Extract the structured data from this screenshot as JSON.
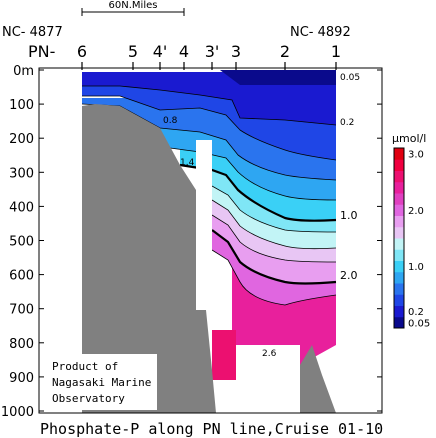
{
  "chart_data": {
    "type": "heatmap",
    "title": "Phosphate-P along PN line,Cruise 01-10",
    "scale_label": "60N.Miles",
    "left_station_id": "NC- 4877",
    "right_station_id": "NC- 4892",
    "line_prefix": "PN-",
    "stations": [
      "6",
      "5",
      "4'",
      "4",
      "3'",
      "3",
      "2",
      "1"
    ],
    "y_axis": {
      "ticks": [
        "0m",
        "100",
        "200",
        "300",
        "400",
        "500",
        "600",
        "700",
        "800",
        "900",
        "1000"
      ],
      "ylim": [
        0,
        1000
      ],
      "unit": "m",
      "inverted": true
    },
    "colorbar": {
      "unit": "μmol/l",
      "tick_labels": [
        "3.0",
        "2.0",
        "1.0",
        "0.2",
        "0.05"
      ],
      "levels": [
        0.05,
        0.2,
        0.4,
        0.6,
        0.8,
        1.0,
        1.2,
        1.4,
        1.6,
        1.8,
        2.0,
        2.2,
        2.4,
        2.6,
        2.8,
        3.0
      ],
      "colors": [
        "#0a0a8c",
        "#1a1ad0",
        "#1f46e6",
        "#2a74ee",
        "#2ea6f2",
        "#3ad0f6",
        "#7fe6f6",
        "#c2f4f6",
        "#e8c6f4",
        "#e89ef0",
        "#e066e0",
        "#e040c0",
        "#e8209c",
        "#ec1070",
        "#f00040",
        "#e00010"
      ]
    },
    "contour_labels": [
      "0.05",
      "0.2",
      "0.8",
      "1.4",
      "1.0",
      "2.0",
      "2.6"
    ],
    "credit": [
      "Product of",
      "Nagasaki Marine",
      "Observatory"
    ]
  }
}
